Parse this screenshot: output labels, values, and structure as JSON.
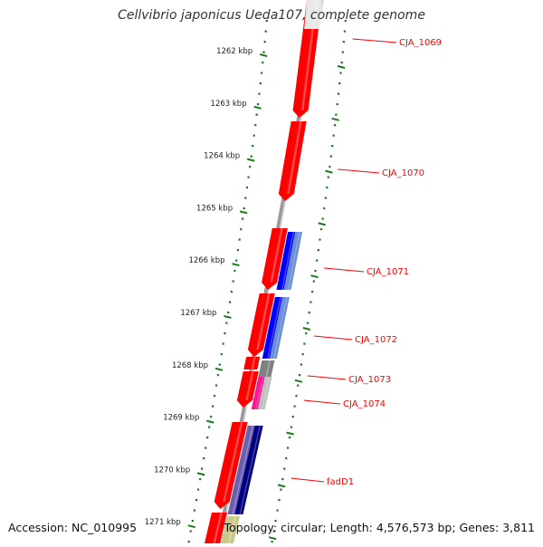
{
  "title": "Cellvibrio japonicus Ueda107, complete genome",
  "footer": {
    "accession": "Accession: NC_010995",
    "summary": "Topology: circular; Length: 4,576,573 bp; Genes: 3,811"
  },
  "colors": {
    "label": "#ff0000",
    "tick": "#1a7a1a",
    "backbone": "#808080",
    "forward_cds": "#ff0000",
    "blue_track": "#0000ff",
    "navy_track": "#000080",
    "pink_track": "#ff1493",
    "gray_track": "#808080"
  },
  "kbp_ticks": [
    "1262 kbp",
    "1263 kbp",
    "1264 kbp",
    "1265 kbp",
    "1266 kbp",
    "1267 kbp",
    "1268 kbp",
    "1269 kbp",
    "1270 kbp",
    "1271 kbp"
  ],
  "gene_labels": [
    "CJA_1069",
    "CJA_1070",
    "CJA_1071",
    "CJA_1072",
    "CJA_1073",
    "CJA_1074",
    "fadD1"
  ]
}
